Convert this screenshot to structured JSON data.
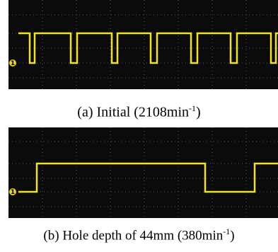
{
  "figures": [
    {
      "channel_label": "1",
      "caption": {
        "text": "(a) Initial (2108min",
        "superscript": "-1",
        "suffix": ")"
      }
    },
    {
      "channel_label": "1",
      "caption": {
        "text": "(b) Hole depth of 44mm (380min",
        "superscript": "-1",
        "suffix": ")"
      }
    }
  ]
}
